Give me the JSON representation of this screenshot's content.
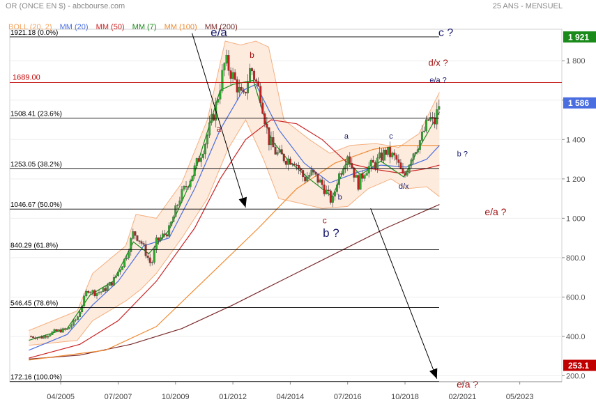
{
  "header": {
    "title": "OR (ONCE EN $) - abcbourse.com",
    "subtitle": "25 ANS - MENSUEL"
  },
  "legend": [
    {
      "label": "BOLL (20, 2)",
      "color": "#f4a460"
    },
    {
      "label": "MM (20)",
      "color": "#4a6ee0"
    },
    {
      "label": "MM (50)",
      "color": "#cc2222"
    },
    {
      "label": "MM (7)",
      "color": "#1a8a1a"
    },
    {
      "label": "MM (100)",
      "color": "#f08a30"
    },
    {
      "label": "MM (200)",
      "color": "#7a2a2a"
    }
  ],
  "chart_data": {
    "type": "candlestick",
    "ylim": [
      170,
      1960
    ],
    "x_ticks": [
      "04/2005",
      "07/2007",
      "10/2009",
      "01/2012",
      "04/2014",
      "07/2016",
      "10/2018",
      "02/2021",
      "05/2023"
    ],
    "y_ticks": [
      "200.0",
      "400.0",
      "600.0",
      "800.0",
      "1 000",
      "1 200",
      "1 400",
      "1 600",
      "1 800"
    ],
    "y_tick_values": [
      200,
      400,
      600,
      800,
      1000,
      1200,
      1400,
      1600,
      1800
    ],
    "price_badges": [
      {
        "label": "1 921",
        "value": 1921,
        "color": "#1a8a1a"
      },
      {
        "label": "1 586",
        "value": 1586,
        "color": "#4a6ee0"
      },
      {
        "label": "253.1",
        "value": 253.1,
        "color": "#c00000"
      }
    ],
    "fibonacci_levels": [
      {
        "label": "1921.18  (0.0%)",
        "value": 1921.18
      },
      {
        "label": "1508.41  (23.6%)",
        "value": 1508.41
      },
      {
        "label": "1253.05  (38.2%)",
        "value": 1253.05
      },
      {
        "label": "1046.67  (50.0%)",
        "value": 1046.67
      },
      {
        "label": "840.29  (61.8%)",
        "value": 840.29
      },
      {
        "label": "546.45  (78.6%)",
        "value": 546.45
      },
      {
        "label": "172.16  (100.0%)",
        "value": 172.16
      }
    ],
    "horizontal_line": {
      "label": "1689.00",
      "value": 1689,
      "color": "#c00000"
    },
    "closes": [
      {
        "t": 2004.0,
        "v": 400
      },
      {
        "t": 2004.5,
        "v": 395
      },
      {
        "t": 2005.0,
        "v": 425
      },
      {
        "t": 2005.5,
        "v": 435
      },
      {
        "t": 2005.9,
        "v": 495
      },
      {
        "t": 2006.3,
        "v": 640
      },
      {
        "t": 2006.6,
        "v": 620
      },
      {
        "t": 2006.9,
        "v": 630
      },
      {
        "t": 2007.3,
        "v": 680
      },
      {
        "t": 2007.8,
        "v": 800
      },
      {
        "t": 2008.1,
        "v": 930
      },
      {
        "t": 2008.4,
        "v": 880
      },
      {
        "t": 2008.8,
        "v": 760
      },
      {
        "t": 2009.0,
        "v": 880
      },
      {
        "t": 2009.5,
        "v": 940
      },
      {
        "t": 2009.9,
        "v": 1100
      },
      {
        "t": 2010.4,
        "v": 1220
      },
      {
        "t": 2010.9,
        "v": 1380
      },
      {
        "t": 2011.3,
        "v": 1550
      },
      {
        "t": 2011.7,
        "v": 1800
      },
      {
        "t": 2012.0,
        "v": 1720
      },
      {
        "t": 2012.4,
        "v": 1600
      },
      {
        "t": 2012.7,
        "v": 1770
      },
      {
        "t": 2013.1,
        "v": 1620
      },
      {
        "t": 2013.4,
        "v": 1400
      },
      {
        "t": 2013.7,
        "v": 1330
      },
      {
        "t": 2014.1,
        "v": 1300
      },
      {
        "t": 2014.4,
        "v": 1300
      },
      {
        "t": 2014.8,
        "v": 1200
      },
      {
        "t": 2015.1,
        "v": 1230
      },
      {
        "t": 2015.5,
        "v": 1170
      },
      {
        "t": 2015.9,
        "v": 1080
      },
      {
        "t": 2016.1,
        "v": 1200
      },
      {
        "t": 2016.5,
        "v": 1330
      },
      {
        "t": 2016.9,
        "v": 1170
      },
      {
        "t": 2017.2,
        "v": 1250
      },
      {
        "t": 2017.6,
        "v": 1280
      },
      {
        "t": 2018.0,
        "v": 1340
      },
      {
        "t": 2018.4,
        "v": 1300
      },
      {
        "t": 2018.7,
        "v": 1200
      },
      {
        "t": 2019.0,
        "v": 1320
      },
      {
        "t": 2019.4,
        "v": 1410
      },
      {
        "t": 2019.7,
        "v": 1510
      },
      {
        "t": 2019.9,
        "v": 1480
      },
      {
        "t": 2020.1,
        "v": 1586
      }
    ],
    "boll_upper": [
      {
        "t": 2004.0,
        "v": 430
      },
      {
        "t": 2005.9,
        "v": 530
      },
      {
        "t": 2006.5,
        "v": 720
      },
      {
        "t": 2007.8,
        "v": 860
      },
      {
        "t": 2008.2,
        "v": 1020
      },
      {
        "t": 2009.0,
        "v": 1000
      },
      {
        "t": 2010.0,
        "v": 1180
      },
      {
        "t": 2011.0,
        "v": 1500
      },
      {
        "t": 2011.7,
        "v": 1900
      },
      {
        "t": 2012.3,
        "v": 1880
      },
      {
        "t": 2012.9,
        "v": 1900
      },
      {
        "t": 2013.4,
        "v": 1870
      },
      {
        "t": 2014.0,
        "v": 1500
      },
      {
        "t": 2015.0,
        "v": 1400
      },
      {
        "t": 2015.8,
        "v": 1330
      },
      {
        "t": 2016.6,
        "v": 1370
      },
      {
        "t": 2017.6,
        "v": 1380
      },
      {
        "t": 2018.5,
        "v": 1360
      },
      {
        "t": 2019.3,
        "v": 1430
      },
      {
        "t": 2020.1,
        "v": 1640
      }
    ],
    "boll_lower": [
      {
        "t": 2004.0,
        "v": 355
      },
      {
        "t": 2005.9,
        "v": 380
      },
      {
        "t": 2006.5,
        "v": 480
      },
      {
        "t": 2007.8,
        "v": 580
      },
      {
        "t": 2008.4,
        "v": 640
      },
      {
        "t": 2009.0,
        "v": 720
      },
      {
        "t": 2010.0,
        "v": 900
      },
      {
        "t": 2011.0,
        "v": 1100
      },
      {
        "t": 2011.8,
        "v": 1350
      },
      {
        "t": 2012.5,
        "v": 1500
      },
      {
        "t": 2013.2,
        "v": 1300
      },
      {
        "t": 2013.8,
        "v": 1100
      },
      {
        "t": 2014.5,
        "v": 1080
      },
      {
        "t": 2015.5,
        "v": 1050
      },
      {
        "t": 2016.5,
        "v": 1060
      },
      {
        "t": 2017.3,
        "v": 1150
      },
      {
        "t": 2018.2,
        "v": 1200
      },
      {
        "t": 2018.8,
        "v": 1150
      },
      {
        "t": 2019.6,
        "v": 1160
      },
      {
        "t": 2020.1,
        "v": 1110
      }
    ],
    "mm20": [
      {
        "t": 2004.0,
        "v": 330
      },
      {
        "t": 2005.5,
        "v": 410
      },
      {
        "t": 2006.5,
        "v": 560
      },
      {
        "t": 2007.5,
        "v": 680
      },
      {
        "t": 2008.5,
        "v": 860
      },
      {
        "t": 2009.5,
        "v": 900
      },
      {
        "t": 2010.5,
        "v": 1150
      },
      {
        "t": 2011.5,
        "v": 1450
      },
      {
        "t": 2012.4,
        "v": 1650
      },
      {
        "t": 2012.9,
        "v": 1680
      },
      {
        "t": 2013.8,
        "v": 1450
      },
      {
        "t": 2014.8,
        "v": 1280
      },
      {
        "t": 2015.8,
        "v": 1180
      },
      {
        "t": 2016.8,
        "v": 1230
      },
      {
        "t": 2017.8,
        "v": 1270
      },
      {
        "t": 2018.8,
        "v": 1260
      },
      {
        "t": 2019.6,
        "v": 1300
      },
      {
        "t": 2020.1,
        "v": 1370
      }
    ],
    "mm50": [
      {
        "t": 2004.0,
        "v": 290
      },
      {
        "t": 2006.0,
        "v": 360
      },
      {
        "t": 2007.5,
        "v": 480
      },
      {
        "t": 2009.0,
        "v": 680
      },
      {
        "t": 2010.5,
        "v": 950
      },
      {
        "t": 2011.5,
        "v": 1200
      },
      {
        "t": 2012.5,
        "v": 1400
      },
      {
        "t": 2013.5,
        "v": 1500
      },
      {
        "t": 2014.5,
        "v": 1480
      },
      {
        "t": 2015.5,
        "v": 1400
      },
      {
        "t": 2016.5,
        "v": 1280
      },
      {
        "t": 2017.5,
        "v": 1250
      },
      {
        "t": 2018.5,
        "v": 1230
      },
      {
        "t": 2019.5,
        "v": 1250
      },
      {
        "t": 2020.1,
        "v": 1270
      }
    ],
    "mm7": [
      {
        "t": 2004.0,
        "v": 380
      },
      {
        "t": 2005.5,
        "v": 440
      },
      {
        "t": 2006.4,
        "v": 610
      },
      {
        "t": 2007.3,
        "v": 680
      },
      {
        "t": 2008.1,
        "v": 880
      },
      {
        "t": 2008.7,
        "v": 820
      },
      {
        "t": 2009.5,
        "v": 940
      },
      {
        "t": 2010.5,
        "v": 1230
      },
      {
        "t": 2011.5,
        "v": 1650
      },
      {
        "t": 2012.0,
        "v": 1680
      },
      {
        "t": 2012.8,
        "v": 1700
      },
      {
        "t": 2013.5,
        "v": 1400
      },
      {
        "t": 2014.2,
        "v": 1290
      },
      {
        "t": 2015.0,
        "v": 1200
      },
      {
        "t": 2015.9,
        "v": 1110
      },
      {
        "t": 2016.5,
        "v": 1290
      },
      {
        "t": 2017.0,
        "v": 1220
      },
      {
        "t": 2017.8,
        "v": 1290
      },
      {
        "t": 2018.7,
        "v": 1210
      },
      {
        "t": 2019.4,
        "v": 1380
      },
      {
        "t": 2020.1,
        "v": 1540
      }
    ],
    "mm100": [
      {
        "t": 2004.0,
        "v": 280
      },
      {
        "t": 2007.0,
        "v": 330
      },
      {
        "t": 2009.0,
        "v": 450
      },
      {
        "t": 2011.0,
        "v": 700
      },
      {
        "t": 2013.0,
        "v": 950
      },
      {
        "t": 2014.5,
        "v": 1150
      },
      {
        "t": 2016.0,
        "v": 1280
      },
      {
        "t": 2017.5,
        "v": 1350
      },
      {
        "t": 2018.5,
        "v": 1370
      },
      {
        "t": 2020.1,
        "v": 1370
      }
    ],
    "mm200": [
      {
        "t": 2004.0,
        "v": 285
      },
      {
        "t": 2006.0,
        "v": 305
      },
      {
        "t": 2008.0,
        "v": 360
      },
      {
        "t": 2010.0,
        "v": 440
      },
      {
        "t": 2012.0,
        "v": 560
      },
      {
        "t": 2014.0,
        "v": 690
      },
      {
        "t": 2016.0,
        "v": 820
      },
      {
        "t": 2018.0,
        "v": 950
      },
      {
        "t": 2020.1,
        "v": 1070
      }
    ],
    "annotations": [
      {
        "text": "e/a",
        "t": 2011.45,
        "v": 1925,
        "color": "#1a1a6e",
        "size": 17
      },
      {
        "text": "b",
        "t": 2012.75,
        "v": 1815,
        "color": "#a01010",
        "size": 12
      },
      {
        "text": "a",
        "t": 2011.45,
        "v": 1440,
        "color": "#a01010",
        "size": 12
      },
      {
        "text": "c ?",
        "t": 2020.35,
        "v": 1925,
        "color": "#1a1a6e",
        "size": 16
      },
      {
        "text": "d/x ?",
        "t": 2020.05,
        "v": 1775,
        "color": "#a01010",
        "size": 13
      },
      {
        "text": "e/a ?",
        "t": 2020.05,
        "v": 1690,
        "color": "#1a1a6e",
        "size": 11
      },
      {
        "text": "a",
        "t": 2016.45,
        "v": 1405,
        "color": "#1a1a6e",
        "size": 11
      },
      {
        "text": "c",
        "t": 2018.2,
        "v": 1405,
        "color": "#1a1a6e",
        "size": 11
      },
      {
        "text": "b ?",
        "t": 2021.0,
        "v": 1315,
        "color": "#1a1a6e",
        "size": 11
      },
      {
        "text": "d/x",
        "t": 2018.7,
        "v": 1150,
        "color": "#1a1a6e",
        "size": 11
      },
      {
        "text": "b",
        "t": 2016.2,
        "v": 1095,
        "color": "#1a1a6e",
        "size": 11
      },
      {
        "text": "e/a ?",
        "t": 2022.3,
        "v": 1015,
        "color": "#a01010",
        "size": 14
      },
      {
        "text": "c",
        "t": 2015.6,
        "v": 975,
        "color": "#a01010",
        "size": 12
      },
      {
        "text": "b ?",
        "t": 2015.85,
        "v": 905,
        "color": "#1a1a6e",
        "size": 17
      },
      {
        "text": "e/a ?",
        "t": 2021.2,
        "v": 140,
        "color": "#a01010",
        "size": 14
      }
    ],
    "arrows": [
      {
        "from": {
          "t": 2010.4,
          "v": 1940
        },
        "to": {
          "t": 2012.5,
          "v": 1055
        }
      },
      {
        "from": {
          "t": 2017.4,
          "v": 1050
        },
        "to": {
          "t": 2020.0,
          "v": 185
        }
      }
    ]
  }
}
